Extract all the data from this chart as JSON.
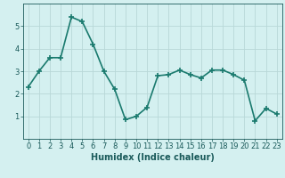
{
  "title": "",
  "xlabel": "Humidex (Indice chaleur)",
  "ylabel": "",
  "x_values": [
    0,
    1,
    2,
    3,
    4,
    5,
    6,
    7,
    8,
    9,
    10,
    11,
    12,
    13,
    14,
    15,
    16,
    17,
    18,
    19,
    20,
    21,
    22,
    23
  ],
  "y_values": [
    2.3,
    3.0,
    3.6,
    3.6,
    5.4,
    5.2,
    4.2,
    3.0,
    2.2,
    0.85,
    1.0,
    1.4,
    2.8,
    2.85,
    3.05,
    2.85,
    2.7,
    3.05,
    3.05,
    2.85,
    2.6,
    0.8,
    1.35,
    1.1
  ],
  "line_color": "#1a7a6e",
  "marker": "+",
  "marker_size": 4,
  "background_color": "#d4f0f0",
  "grid_color": "#b8d8d8",
  "ylim": [
    0,
    6
  ],
  "xlim": [
    -0.5,
    23.5
  ],
  "yticks": [
    1,
    2,
    3,
    4,
    5
  ],
  "xticks": [
    0,
    1,
    2,
    3,
    4,
    5,
    6,
    7,
    8,
    9,
    10,
    11,
    12,
    13,
    14,
    15,
    16,
    17,
    18,
    19,
    20,
    21,
    22,
    23
  ],
  "tick_label_fontsize": 6,
  "xlabel_fontsize": 7,
  "line_width": 1.2,
  "axis_color": "#1a5a5a",
  "marker_edge_width": 1.2
}
